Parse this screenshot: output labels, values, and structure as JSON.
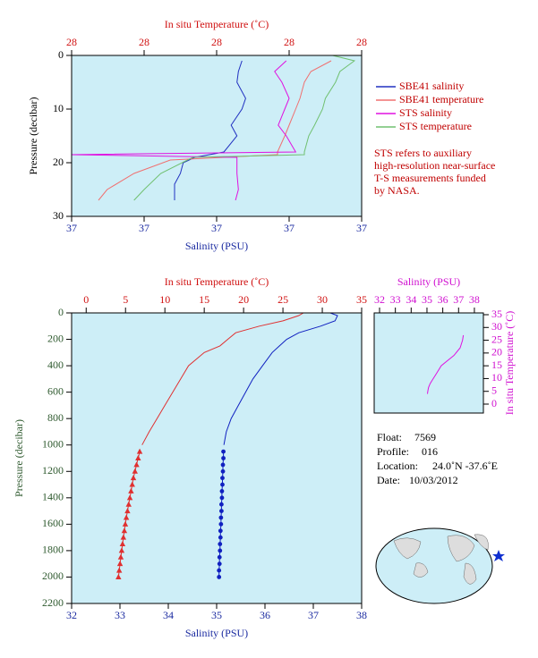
{
  "chart_data": [
    {
      "type": "line",
      "x_label": "Salinity (PSU)",
      "x2_label": "In situ Temperature (˚C)",
      "y_label": "Pressure (decibar)",
      "xlim": [
        36.8,
        37.2
      ],
      "xticks": [
        {
          "value": 36.8,
          "label": "37"
        },
        {
          "value": 36.9,
          "label": "37"
        },
        {
          "value": 37.0,
          "label": "37"
        },
        {
          "value": 37.1,
          "label": "37"
        },
        {
          "value": 37.2,
          "label": "37"
        }
      ],
      "x2lim": [
        27.8,
        28.2
      ],
      "x2ticks": [
        {
          "value": 27.8,
          "label": "28"
        },
        {
          "value": 27.9,
          "label": "28"
        },
        {
          "value": 28.0,
          "label": "28"
        },
        {
          "value": 28.1,
          "label": "28"
        },
        {
          "value": 28.2,
          "label": "28"
        }
      ],
      "ylim": [
        30,
        0
      ],
      "yticks": [
        0,
        10,
        20,
        30
      ],
      "legend": "right",
      "series": [
        {
          "name": "SBE41 salinity",
          "color": "#2030c0",
          "axis": "x",
          "y": [
            1,
            3,
            5,
            8,
            10,
            13,
            15,
            18,
            19,
            20,
            22,
            24,
            27
          ],
          "x": [
            37.035,
            37.03,
            37.028,
            37.04,
            37.035,
            37.02,
            37.028,
            37.01,
            36.97,
            36.954,
            36.95,
            36.942,
            36.942
          ]
        },
        {
          "name": "SBE41 temperature",
          "color": "#f07070",
          "axis": "x2",
          "y": [
            1,
            3,
            5,
            8,
            10,
            13,
            15,
            18,
            18.5,
            19.5,
            22,
            25,
            27
          ],
          "x": [
            28.158,
            28.13,
            28.121,
            28.115,
            28.109,
            28.1,
            28.094,
            28.084,
            28.084,
            27.936,
            27.886,
            27.849,
            27.837
          ]
        },
        {
          "name": "STS salinity",
          "color": "#e010e0",
          "axis": "x",
          "y": [
            1,
            3,
            5,
            8,
            10,
            13,
            15,
            18,
            18.5,
            19,
            22,
            25,
            27
          ],
          "x": [
            37.096,
            37.08,
            37.09,
            37.1,
            37.094,
            37.085,
            37.096,
            37.109,
            36.8,
            37.028,
            37.028,
            37.03,
            37.026
          ]
        },
        {
          "name": "STS temperature",
          "color": "#70c070",
          "axis": "x2",
          "y": [
            0,
            1,
            3,
            5,
            8,
            10,
            13,
            15,
            18,
            18.5,
            19,
            22,
            25,
            27
          ],
          "x": [
            28.16,
            28.19,
            28.17,
            28.164,
            28.15,
            28.146,
            28.135,
            28.127,
            28.121,
            28.121,
            27.967,
            27.923,
            27.9,
            27.886
          ]
        }
      ],
      "annotation": [
        "STS refers to auxiliary",
        "high-resolution near-surface",
        "T-S measurements funded",
        "by NASA."
      ]
    },
    {
      "type": "line",
      "x_label": "Salinity (PSU)",
      "x2_label": "In situ Temperature (˚C)",
      "y_label": "Pressure (decibar)",
      "xlim": [
        32,
        38
      ],
      "xticks": [
        32,
        33,
        34,
        35,
        36,
        37,
        38
      ],
      "x2lim": [
        -1.85,
        35
      ],
      "x2ticks": [
        0,
        5,
        10,
        15,
        20,
        25,
        30,
        35
      ],
      "ylim": [
        2200,
        0
      ],
      "yticks": [
        0,
        200,
        400,
        600,
        800,
        1000,
        1200,
        1400,
        1600,
        1800,
        2000,
        2200
      ],
      "series": [
        {
          "color": "#e03030",
          "axis": "x2",
          "marker": "none",
          "y": [
            0,
            20,
            60,
            100,
            150,
            200,
            250,
            300,
            400,
            500,
            600,
            700,
            800,
            900,
            1000
          ],
          "x": [
            27.6,
            27,
            25,
            22,
            19,
            18,
            17,
            15,
            13,
            12,
            11,
            10,
            9,
            8,
            7.1
          ]
        },
        {
          "color": "#e03030",
          "axis": "x2",
          "marker": "triangle",
          "y": [
            1050,
            1100,
            1150,
            1200,
            1250,
            1300,
            1350,
            1400,
            1450,
            1500,
            1550,
            1600,
            1650,
            1700,
            1750,
            1800,
            1850,
            1900,
            1950,
            2000
          ],
          "x": [
            6.8,
            6.6,
            6.4,
            6.2,
            6.0,
            5.85,
            5.7,
            5.55,
            5.4,
            5.25,
            5.1,
            4.97,
            4.85,
            4.73,
            4.62,
            4.51,
            4.4,
            4.3,
            4.2,
            4.1
          ]
        },
        {
          "color": "#1020c0",
          "axis": "x",
          "marker": "none",
          "y": [
            0,
            20,
            60,
            100,
            150,
            200,
            250,
            300,
            400,
            500,
            600,
            700,
            800,
            900,
            1000
          ],
          "x": [
            37.35,
            37.5,
            37.45,
            37.15,
            36.7,
            36.45,
            36.3,
            36.15,
            35.95,
            35.75,
            35.6,
            35.45,
            35.3,
            35.2,
            35.15
          ]
        },
        {
          "color": "#1020c0",
          "axis": "x",
          "marker": "circle",
          "y": [
            1050,
            1100,
            1150,
            1200,
            1250,
            1300,
            1350,
            1400,
            1450,
            1500,
            1550,
            1600,
            1650,
            1700,
            1750,
            1800,
            1850,
            1900,
            1950,
            2000
          ],
          "x": [
            35.14,
            35.14,
            35.13,
            35.13,
            35.12,
            35.12,
            35.11,
            35.11,
            35.1,
            35.1,
            35.09,
            35.09,
            35.08,
            35.08,
            35.07,
            35.07,
            35.06,
            35.06,
            35.05,
            35.05
          ]
        }
      ]
    },
    {
      "type": "line",
      "x_label": "Salinity (PSU)",
      "y_label": "In situ Temperature (˚C)",
      "x_axis_position": "top",
      "y_axis_position": "right",
      "xlim": [
        31.66,
        38.57
      ],
      "xticks": [
        32,
        33,
        34,
        35,
        36,
        37,
        38
      ],
      "ylim": [
        -3.5,
        35.7
      ],
      "yticks": [
        0,
        5,
        10,
        15,
        20,
        25,
        30,
        35
      ],
      "series": [
        {
          "color": "#e010e0",
          "axis": "x",
          "x": [
            37.3,
            37.25,
            37.1,
            36.7,
            36.3,
            35.9,
            35.6,
            35.35,
            35.2,
            35.1,
            35.05,
            35.03
          ],
          "y": [
            27,
            25,
            22,
            19,
            17,
            15,
            12,
            9.5,
            8,
            6.5,
            5,
            4
          ]
        }
      ]
    }
  ],
  "info": [
    [
      "Float:",
      "7569"
    ],
    [
      "Profile:",
      "016"
    ],
    [
      "Location:",
      "24.0˚N  -37.6˚E"
    ],
    [
      "Date:",
      "10/03/2012"
    ]
  ]
}
